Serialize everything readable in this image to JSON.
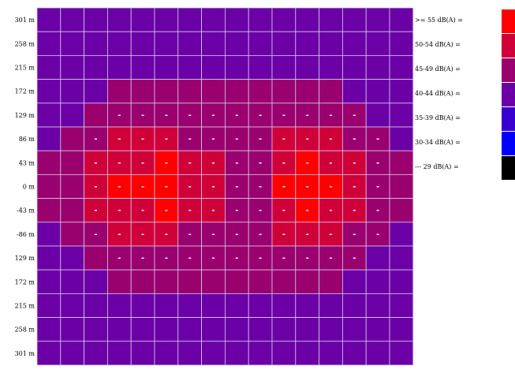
{
  "chart_data": {
    "type": "heatmap",
    "title": "",
    "xlabel": "",
    "ylabel": "",
    "y_tick_labels": [
      "301 m",
      "258 m",
      "215 m",
      "172 m",
      "129 m",
      "86 m",
      "43 m",
      "0 m",
      "-43 m",
      "-86 m",
      "129 m",
      "172 m",
      "215 m",
      "258 m",
      "301 m"
    ],
    "columns": 16,
    "grid": true,
    "legend": [
      {
        "label": ">= 55 dB(A) =",
        "color": "#ff0000"
      },
      {
        "label": "50-54 dB(A) =",
        "color": "#d00038"
      },
      {
        "label": "45-49 dB(A) =",
        "color": "#9a006e"
      },
      {
        "label": "40-44 dB(A) =",
        "color": "#6a00a6"
      },
      {
        "label": "35-39 dB(A) =",
        "color": "#3800d0"
      },
      {
        "label": "30-34 dB(A) =",
        "color": "#0000ff"
      },
      {
        "label": "--- 29 dB(A) =",
        "color": "#000000"
      }
    ],
    "cell_marker": "-",
    "values": [
      [
        3,
        3,
        3,
        3,
        3,
        3,
        3,
        3,
        3,
        3,
        3,
        3,
        3,
        3,
        3,
        3
      ],
      [
        3,
        3,
        3,
        3,
        3,
        3,
        3,
        3,
        3,
        3,
        3,
        3,
        3,
        3,
        3,
        3
      ],
      [
        3,
        3,
        3,
        3,
        3,
        3,
        3,
        3,
        3,
        3,
        3,
        3,
        3,
        3,
        3,
        3
      ],
      [
        3,
        3,
        3,
        2,
        2,
        2,
        2,
        2,
        2,
        2,
        2,
        2,
        2,
        3,
        3,
        3
      ],
      [
        3,
        3,
        2,
        2,
        2,
        2,
        2,
        2,
        2,
        2,
        2,
        2,
        2,
        2,
        3,
        3
      ],
      [
        3,
        2,
        2,
        1,
        1,
        1,
        2,
        2,
        2,
        2,
        1,
        1,
        1,
        2,
        2,
        3
      ],
      [
        2,
        2,
        1,
        1,
        1,
        0,
        1,
        1,
        2,
        2,
        1,
        0,
        1,
        1,
        2,
        2
      ],
      [
        2,
        2,
        1,
        0,
        0,
        0,
        1,
        1,
        2,
        2,
        0,
        0,
        0,
        1,
        2,
        2
      ],
      [
        2,
        2,
        1,
        1,
        1,
        0,
        1,
        1,
        2,
        2,
        1,
        0,
        1,
        1,
        2,
        2
      ],
      [
        3,
        2,
        2,
        1,
        1,
        1,
        2,
        2,
        2,
        2,
        1,
        1,
        1,
        2,
        2,
        3
      ],
      [
        3,
        3,
        2,
        2,
        2,
        2,
        2,
        2,
        2,
        2,
        2,
        2,
        2,
        2,
        3,
        3
      ],
      [
        3,
        3,
        3,
        2,
        2,
        2,
        2,
        2,
        2,
        2,
        2,
        2,
        2,
        3,
        3,
        3
      ],
      [
        3,
        3,
        3,
        3,
        3,
        3,
        3,
        3,
        3,
        3,
        3,
        3,
        3,
        3,
        3,
        3
      ],
      [
        3,
        3,
        3,
        3,
        3,
        3,
        3,
        3,
        3,
        3,
        3,
        3,
        3,
        3,
        3,
        3
      ],
      [
        3,
        3,
        3,
        3,
        3,
        3,
        3,
        3,
        3,
        3,
        3,
        3,
        3,
        3,
        3,
        3
      ]
    ],
    "markers": [
      [
        0,
        0,
        0,
        0,
        0,
        0,
        0,
        0,
        0,
        0,
        0,
        0,
        0,
        0,
        0,
        0
      ],
      [
        0,
        0,
        0,
        0,
        0,
        0,
        0,
        0,
        0,
        0,
        0,
        0,
        0,
        0,
        0,
        0
      ],
      [
        0,
        0,
        0,
        0,
        0,
        0,
        0,
        0,
        0,
        0,
        0,
        0,
        0,
        0,
        0,
        0
      ],
      [
        0,
        0,
        0,
        0,
        0,
        0,
        0,
        0,
        0,
        0,
        0,
        0,
        0,
        0,
        0,
        0
      ],
      [
        0,
        0,
        0,
        1,
        1,
        1,
        1,
        1,
        1,
        1,
        1,
        1,
        1,
        1,
        0,
        0
      ],
      [
        0,
        0,
        1,
        1,
        1,
        1,
        1,
        1,
        1,
        1,
        1,
        1,
        1,
        1,
        1,
        0
      ],
      [
        0,
        0,
        1,
        1,
        1,
        1,
        1,
        1,
        1,
        1,
        1,
        1,
        1,
        1,
        1,
        0
      ],
      [
        0,
        0,
        1,
        1,
        1,
        1,
        1,
        1,
        1,
        1,
        1,
        1,
        1,
        1,
        1,
        0
      ],
      [
        0,
        0,
        1,
        1,
        1,
        1,
        1,
        1,
        1,
        1,
        1,
        1,
        1,
        1,
        1,
        0
      ],
      [
        0,
        0,
        1,
        1,
        1,
        1,
        1,
        1,
        1,
        1,
        1,
        1,
        1,
        1,
        1,
        0
      ],
      [
        0,
        0,
        0,
        1,
        1,
        1,
        1,
        1,
        1,
        1,
        1,
        1,
        1,
        1,
        0,
        0
      ],
      [
        0,
        0,
        0,
        0,
        0,
        0,
        0,
        0,
        0,
        0,
        0,
        0,
        0,
        0,
        0,
        0
      ],
      [
        0,
        0,
        0,
        0,
        0,
        0,
        0,
        0,
        0,
        0,
        0,
        0,
        0,
        0,
        0,
        0
      ],
      [
        0,
        0,
        0,
        0,
        0,
        0,
        0,
        0,
        0,
        0,
        0,
        0,
        0,
        0,
        0,
        0
      ],
      [
        0,
        0,
        0,
        0,
        0,
        0,
        0,
        0,
        0,
        0,
        0,
        0,
        0,
        0,
        0,
        0
      ]
    ]
  }
}
